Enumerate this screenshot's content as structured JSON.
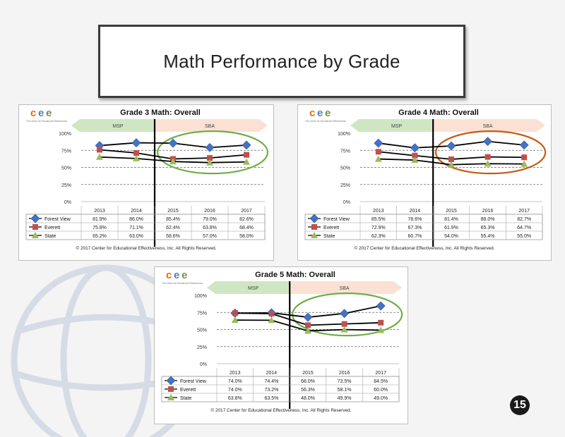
{
  "slide": {
    "title": "Math Performance  by Grade",
    "page_number": "15"
  },
  "colors": {
    "forest_view": "#4472c4",
    "everett": "#c0504d",
    "state": "#9bbb59",
    "msp_band": "#cfe6c2",
    "sba_band": "#fbe1d3",
    "highlight_green": "#70ad47",
    "highlight_orange": "#c55a11"
  },
  "chart_data": [
    {
      "type": "line",
      "title": "Grade 3 Math: Overall",
      "logo": "cee",
      "logo_tagline": "The Center for Educational Effectiveness",
      "eras": [
        {
          "label": "MSP"
        },
        {
          "label": "SBA"
        }
      ],
      "categories": [
        "2013",
        "2014",
        "2015",
        "2016",
        "2017"
      ],
      "yticks": [
        "100%",
        "75%",
        "50%",
        "25%",
        "0%"
      ],
      "ylim": [
        0,
        100
      ],
      "series": [
        {
          "name": "Forest View",
          "values": [
            81.9,
            86.0,
            85.4,
            79.0,
            82.6
          ],
          "labels": [
            "81.9%",
            "86.0%",
            "85.4%",
            "79.0%",
            "82.6%"
          ]
        },
        {
          "name": "Everett",
          "values": [
            75.8,
            71.1,
            62.4,
            63.8,
            68.4
          ],
          "labels": [
            "75.8%",
            "71.1%",
            "62.4%",
            "63.8%",
            "68.4%"
          ]
        },
        {
          "name": "State",
          "values": [
            65.2,
            63.0,
            58.6,
            57.0,
            58.0
          ],
          "labels": [
            "65.2%",
            "63.0%",
            "58.6%",
            "57.0%",
            "58.0%"
          ]
        }
      ],
      "highlight": "green",
      "footer": "© 2017 Center for Educational Effectiveness, Inc. All Rights Reserved."
    },
    {
      "type": "line",
      "title": "Grade 4 Math: Overall",
      "logo": "cee",
      "logo_tagline": "The Center for Educational Effectiveness",
      "eras": [
        {
          "label": "MSP"
        },
        {
          "label": "SBA"
        }
      ],
      "categories": [
        "2013",
        "2014",
        "2015",
        "2016",
        "2017"
      ],
      "yticks": [
        "100%",
        "75%",
        "50%",
        "25%",
        "0%"
      ],
      "ylim": [
        0,
        100
      ],
      "series": [
        {
          "name": "Forest View",
          "values": [
            85.5,
            78.6,
            81.4,
            88.0,
            82.7
          ],
          "labels": [
            "85.5%",
            "78.6%",
            "81.4%",
            "88.0%",
            "82.7%"
          ]
        },
        {
          "name": "Everett",
          "values": [
            72.9,
            67.3,
            61.9,
            65.3,
            64.7
          ],
          "labels": [
            "72.9%",
            "67.3%",
            "61.9%",
            "65.3%",
            "64.7%"
          ]
        },
        {
          "name": "State",
          "values": [
            62.3,
            60.7,
            54.0,
            55.4,
            55.0
          ],
          "labels": [
            "62.3%",
            "60.7%",
            "54.0%",
            "55.4%",
            "55.0%"
          ]
        }
      ],
      "highlight": "orange",
      "footer": "© 2017 Center for Educational Effectiveness, Inc. All Rights Reserved."
    },
    {
      "type": "line",
      "title": "Grade 5 Math: Overall",
      "logo": "cee",
      "logo_tagline": "The Center for Educational Effectiveness",
      "eras": [
        {
          "label": "MSP"
        },
        {
          "label": "SBA"
        }
      ],
      "categories": [
        "2013",
        "2014",
        "2015",
        "2016",
        "2017"
      ],
      "yticks": [
        "100%",
        "75%",
        "50%",
        "25%",
        "0%"
      ],
      "ylim": [
        0,
        100
      ],
      "series": [
        {
          "name": "Forest View",
          "values": [
            74.0,
            74.4,
            68.0,
            73.5,
            84.5
          ],
          "labels": [
            "74.0%",
            "74.4%",
            "68.0%",
            "73.5%",
            "84.5%"
          ]
        },
        {
          "name": "Everett",
          "values": [
            74.0,
            73.2,
            56.3,
            58.1,
            60.0
          ],
          "labels": [
            "74.0%",
            "73.2%",
            "56.3%",
            "58.1%",
            "60.0%"
          ]
        },
        {
          "name": "State",
          "values": [
            63.8,
            63.5,
            48.0,
            49.9,
            49.0
          ],
          "labels": [
            "63.8%",
            "63.5%",
            "48.0%",
            "49.9%",
            "49.0%"
          ]
        }
      ],
      "highlight": "green",
      "footer": "© 2017 Center for Educational Effectiveness, Inc. All Rights Reserved."
    }
  ]
}
